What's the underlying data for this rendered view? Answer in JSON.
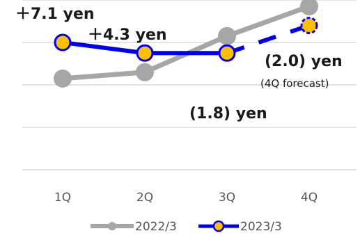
{
  "chart_data": {
    "type": "line",
    "categories": [
      "1Q",
      "2Q",
      "3Q",
      "4Q"
    ],
    "series": [
      {
        "name": "2022/3",
        "values": [
          21.5,
          23.0,
          31.5,
          38.5
        ],
        "color": "#a6a6a6"
      },
      {
        "name": "2023/3",
        "values": [
          30.0,
          27.5,
          27.5,
          34.0
        ],
        "color": "#0000ee",
        "marker_fill": "#ffc000",
        "last_segment_dashed": true
      }
    ],
    "ylim": [
      0,
      40
    ],
    "grid": true,
    "legend_position": "bottom",
    "annotations": [
      {
        "text": "＋7.1 yen"
      },
      {
        "text": "＋4.3 yen"
      },
      {
        "text": "(2.0) yen"
      },
      {
        "text": "(4Q forecast)"
      },
      {
        "text": "(1.8) yen"
      }
    ]
  }
}
